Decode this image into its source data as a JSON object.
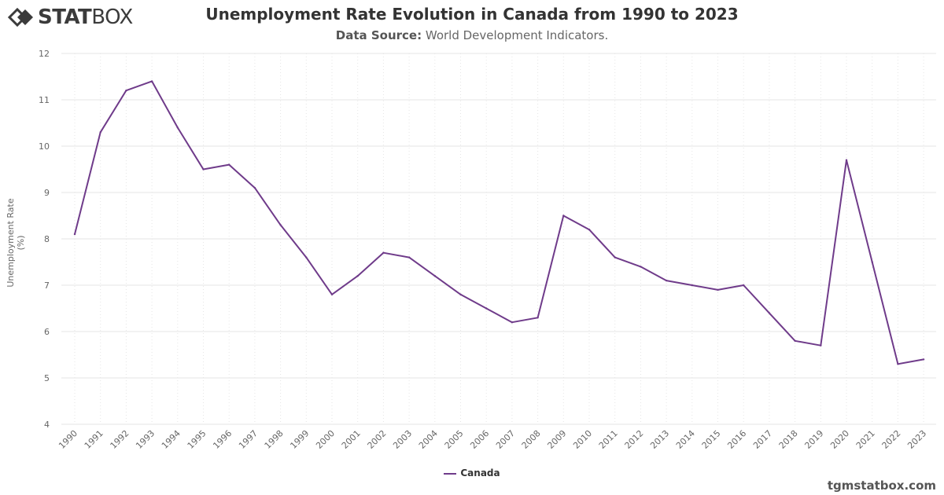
{
  "brand": {
    "bold": "STAT",
    "light": "BOX",
    "icon": "statbox-diamond-icon"
  },
  "header": {
    "title": "Unemployment Rate Evolution in Canada from 1990 to 2023",
    "source_label": "Data Source:",
    "source_value": " World Development Indicators."
  },
  "watermark": "tgmstatbox.com",
  "colors": {
    "series": "#6f3b8a",
    "grid": "#e6e6e6",
    "axis_text": "#666666"
  },
  "chart_data": {
    "type": "line",
    "title": "Unemployment Rate Evolution in Canada from 1990 to 2023",
    "xlabel": "",
    "ylabel": "Unemployment Rate (%)",
    "ylim": [
      4,
      12
    ],
    "yticks": [
      4,
      5,
      6,
      7,
      8,
      9,
      10,
      11,
      12
    ],
    "grid": true,
    "legend_position": "bottom-center",
    "categories": [
      "1990",
      "1991",
      "1992",
      "1993",
      "1994",
      "1995",
      "1996",
      "1997",
      "1998",
      "1999",
      "2000",
      "2001",
      "2002",
      "2003",
      "2004",
      "2005",
      "2006",
      "2007",
      "2008",
      "2009",
      "2010",
      "2011",
      "2012",
      "2013",
      "2014",
      "2015",
      "2016",
      "2017",
      "2018",
      "2019",
      "2020",
      "2021",
      "2022",
      "2023"
    ],
    "series": [
      {
        "name": "Canada",
        "values": [
          8.1,
          10.3,
          11.2,
          11.4,
          10.4,
          9.5,
          9.6,
          9.1,
          8.3,
          7.6,
          6.8,
          7.2,
          7.7,
          7.6,
          7.2,
          6.8,
          6.5,
          6.2,
          6.3,
          8.5,
          8.2,
          7.6,
          7.4,
          7.1,
          7.0,
          6.9,
          7.0,
          6.4,
          5.8,
          5.7,
          9.7,
          7.5,
          5.3,
          5.4
        ]
      }
    ]
  }
}
